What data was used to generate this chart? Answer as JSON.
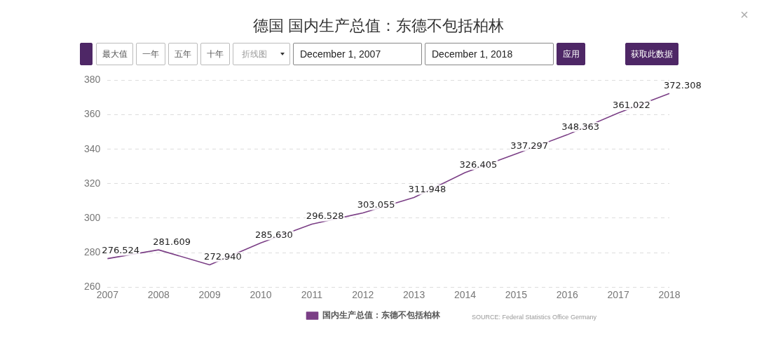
{
  "chart_data": {
    "type": "line",
    "title": "德国 国内生产总值：东德不包括柏林",
    "categories": [
      "2007",
      "2008",
      "2009",
      "2010",
      "2011",
      "2012",
      "2013",
      "2014",
      "2015",
      "2016",
      "2017",
      "2018"
    ],
    "series": [
      {
        "name": "国内生产总值：东德不包括柏林",
        "color": "#7b3f86",
        "values": [
          276.524,
          281.609,
          272.94,
          285.63,
          296.528,
          303.055,
          311.948,
          326.405,
          337.297,
          348.363,
          361.022,
          372.308
        ],
        "value_labels": [
          "276.524",
          "281.609",
          "272.940",
          "285.630",
          "296.528",
          "303.055",
          "311.948",
          "326.405",
          "337.297",
          "348.363",
          "361.022",
          "372.308"
        ]
      }
    ],
    "ylim": [
      260,
      380
    ],
    "yticks": [
      260,
      280,
      300,
      320,
      340,
      360,
      380
    ],
    "grid": "y",
    "legend": "bottom",
    "marker": "none",
    "line_style": "solid",
    "annotations": [
      "最大值",
      "一年",
      "五年",
      "十年",
      "折线图",
      "December 1, 2007",
      "December 1, 2018",
      "应用",
      "获取此数据",
      "SOURCE: Federal Statistics Office Germany"
    ]
  }
}
